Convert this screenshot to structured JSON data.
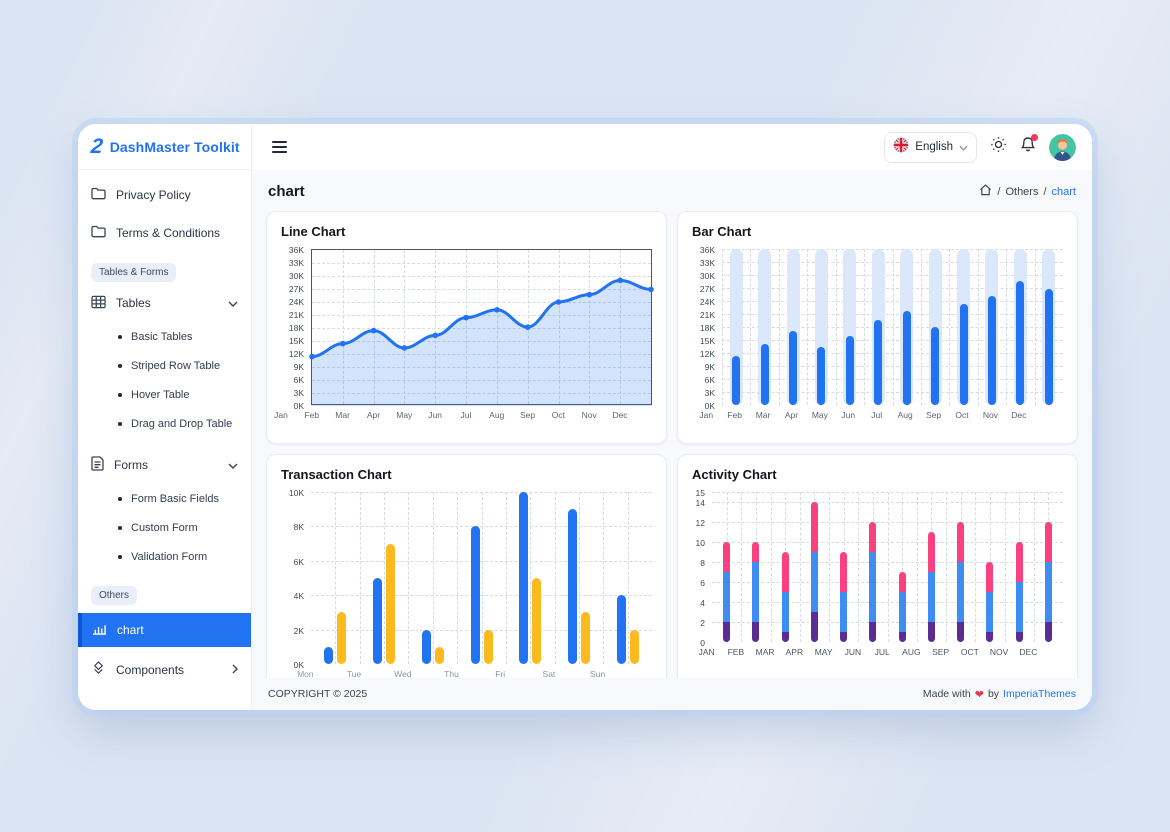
{
  "app": {
    "title": "DashMaster Toolkit",
    "logo_glyph": "2"
  },
  "sidebar": {
    "items": {
      "privacy": "Privacy Policy",
      "terms": "Terms & Conditions",
      "tables": "Tables",
      "forms": "Forms",
      "chart": "chart",
      "components": "Components"
    },
    "sections": {
      "tables_forms": "Tables & Forms",
      "others": "Others"
    },
    "tables_sub": [
      "Basic Tables",
      "Striped Row Table",
      "Hover Table",
      "Drag and Drop Table"
    ],
    "forms_sub": [
      "Form Basic Fields",
      "Custom Form",
      "Validation Form"
    ]
  },
  "header": {
    "language": "English",
    "page_title": "chart",
    "breadcrumb_sep1": "/",
    "breadcrumb_section": "Others",
    "breadcrumb_sep2": "/",
    "breadcrumb_current": "chart"
  },
  "footer": {
    "copyright": "COPYRIGHT © 2025",
    "made_prefix": "Made with",
    "heart": "❤",
    "made_by": "by",
    "brand": "ImperiaThemes"
  },
  "colors": {
    "primary_blue": "#2173f2",
    "line_fill": "rgba(33,115,242,0.20)",
    "bar_track": "#dbe8fc",
    "yellow": "#fcba1e",
    "activity_blue": "#3f8cf3",
    "activity_pink": "#f94180",
    "activity_purple": "#5b2c91",
    "grid": "#d3dbe7",
    "accent_red": "#e8384f"
  },
  "chart_data": [
    {
      "type": "line",
      "title": "Line Chart",
      "x": [
        "Jan",
        "Feb",
        "Mar",
        "Apr",
        "May",
        "Jun",
        "Jul",
        "Aug",
        "Sep",
        "Oct",
        "Nov",
        "Dec"
      ],
      "values_k": [
        11.4,
        14.4,
        17.4,
        13.4,
        16.3,
        20.4,
        22.2,
        18.2,
        24.0,
        25.7,
        29.0,
        26.9
      ],
      "ylim": [
        0,
        36
      ],
      "ytick_step": 3,
      "unit": "K",
      "area": true,
      "grid": "dashed",
      "plot_border": true,
      "legend": "none"
    },
    {
      "type": "bar",
      "title": "Bar Chart",
      "categories": [
        "Jan",
        "Feb",
        "Mar",
        "Apr",
        "May",
        "Jun",
        "Jul",
        "Aug",
        "Sep",
        "Oct",
        "Nov",
        "Dec"
      ],
      "values_k": [
        11.2,
        14.1,
        17.0,
        13.3,
        16.0,
        19.6,
        21.8,
        18.0,
        23.4,
        25.2,
        28.7,
        26.7
      ],
      "ylim": [
        0,
        36
      ],
      "ytick_step": 3,
      "unit": "K",
      "track_bars": true,
      "bar_color": "#2173f2",
      "grid": "dashed",
      "legend": "none"
    },
    {
      "type": "bar",
      "title": "Transaction Chart",
      "categories": [
        "Mon",
        "Tue",
        "Wed",
        "Thu",
        "Fri",
        "Sat",
        "Sun"
      ],
      "series": [
        {
          "name": "blue",
          "color": "#2173f2",
          "values_k": [
            1,
            5,
            2,
            8,
            10,
            9,
            4
          ]
        },
        {
          "name": "yellow",
          "color": "#fcba1e",
          "values_k": [
            3,
            7,
            1,
            2,
            5,
            3,
            2
          ]
        }
      ],
      "ylim": [
        0,
        10
      ],
      "ytick_step": 2,
      "unit": "K",
      "grid": "dashed",
      "legend": "none"
    },
    {
      "type": "bar",
      "title": "Activity Chart",
      "stacked": true,
      "categories": [
        "JAN",
        "FEB",
        "MAR",
        "APR",
        "MAY",
        "JUN",
        "JUL",
        "AUG",
        "SEP",
        "OCT",
        "NOV",
        "DEC"
      ],
      "series": [
        {
          "name": "purple",
          "color": "#5b2c91",
          "values": [
            2,
            2,
            1,
            3,
            1,
            2,
            1,
            2,
            2,
            1,
            1,
            2
          ]
        },
        {
          "name": "blue",
          "color": "#3f8cf3",
          "values": [
            5,
            6,
            4,
            6,
            4,
            7,
            4,
            5,
            6,
            4,
            5,
            6
          ]
        },
        {
          "name": "pink",
          "color": "#f94180",
          "values": [
            3,
            2,
            4,
            5,
            4,
            3,
            2,
            4,
            4,
            3,
            4,
            4
          ]
        }
      ],
      "ylim": [
        0,
        15
      ],
      "yticks": [
        0,
        2,
        4,
        6,
        8,
        10,
        12,
        14,
        15
      ],
      "unit": "",
      "grid": "dashed",
      "legend": "none"
    }
  ]
}
